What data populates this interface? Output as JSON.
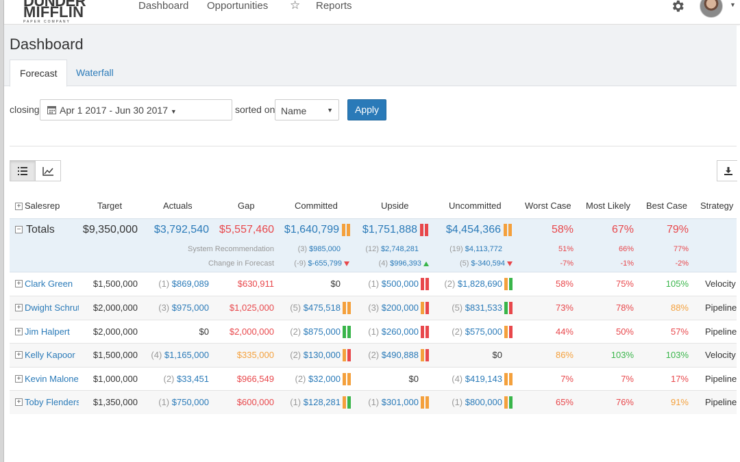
{
  "nav": {
    "logo_line1": "DUNDER",
    "logo_line2": "MIFFLIN",
    "logo_sub": "PAPER COMPANY",
    "links": [
      "Dashboard",
      "Opportunities",
      "Reports"
    ],
    "star_icon": "star-icon",
    "settings_icon": "gear-icon",
    "user_menu_icon": "chevron-down-icon"
  },
  "page": {
    "title": "Dashboard",
    "tabs": [
      "Forecast",
      "Waterfall"
    ],
    "active_tab": "Forecast"
  },
  "filters": {
    "closing_label": "closing",
    "date_range": "Apr 1 2017 - Jun 30 2017",
    "sorted_label": "sorted on",
    "sort_value": "Name",
    "apply_label": "Apply"
  },
  "view_icons": [
    "list-icon",
    "line-chart-icon"
  ],
  "download_icon": "download-icon",
  "colors": {
    "accent": "#2a7ab8",
    "negative": "#e8474b",
    "warning": "#f4a03c",
    "positive": "#39b54a",
    "totals_bg": "#e8f1f8"
  },
  "table": {
    "headers": {
      "salesrep": "Salesrep",
      "target": "Target",
      "actuals": "Actuals",
      "gap": "Gap",
      "committed": "Committed",
      "upside": "Upside",
      "uncommitted": "Uncommitted",
      "worst": "Worst Case",
      "likely": "Most Likely",
      "best": "Best Case",
      "strategy": "Strategy"
    },
    "totals": {
      "label": "Totals",
      "target": "$9,350,000",
      "actuals": "$3,792,540",
      "gap": "$5,557,460",
      "committed": "$1,640,799",
      "upside": "$1,751,888",
      "uncommitted": "$4,454,366",
      "worst": "58%",
      "likely": "67%",
      "best": "79%",
      "sys_label": "System Recommendation",
      "sys_committed_count": "(3)",
      "sys_committed": "$985,000",
      "sys_upside_count": "(12)",
      "sys_upside": "$2,748,281",
      "sys_uncommitted_count": "(19)",
      "sys_uncommitted": "$4,113,772",
      "sys_worst": "51%",
      "sys_likely": "66%",
      "sys_best": "77%",
      "chg_label": "Change in Forecast",
      "chg_committed_count": "(-9)",
      "chg_committed": "$-655,799",
      "chg_upside_count": "(4)",
      "chg_upside": "$996,393",
      "chg_uncommitted_count": "(5)",
      "chg_uncommitted": "$-340,594",
      "chg_worst": "-7%",
      "chg_likely": "-1%",
      "chg_best": "-2%"
    },
    "rows": [
      {
        "name": "Clark Green",
        "target": "$1,500,000",
        "act_count": "(1)",
        "actuals": "$869,089",
        "gap": "$630,911",
        "com_count": "",
        "committed": "$0",
        "up_count": "(1)",
        "upside": "$500,000",
        "unc_count": "(2)",
        "uncommitted": "$1,828,690",
        "worst": "58%",
        "likely": "75%",
        "best": "105%",
        "strategy": "Velocity"
      },
      {
        "name": "Dwight Schrute",
        "target": "$2,000,000",
        "act_count": "(3)",
        "actuals": "$975,000",
        "gap": "$1,025,000",
        "com_count": "(5)",
        "committed": "$475,518",
        "up_count": "(3)",
        "upside": "$200,000",
        "unc_count": "(5)",
        "uncommitted": "$831,533",
        "worst": "73%",
        "likely": "78%",
        "best": "88%",
        "strategy": "Pipeline"
      },
      {
        "name": "Jim Halpert",
        "target": "$2,000,000",
        "act_count": "",
        "actuals": "$0",
        "gap": "$2,000,000",
        "com_count": "(2)",
        "committed": "$875,000",
        "up_count": "(1)",
        "upside": "$260,000",
        "unc_count": "(2)",
        "uncommitted": "$575,000",
        "worst": "44%",
        "likely": "50%",
        "best": "57%",
        "strategy": "Pipeline"
      },
      {
        "name": "Kelly Kapoor",
        "target": "$1,500,000",
        "act_count": "(4)",
        "actuals": "$1,165,000",
        "gap": "$335,000",
        "com_count": "(2)",
        "committed": "$130,000",
        "up_count": "(2)",
        "upside": "$490,888",
        "unc_count": "",
        "uncommitted": "$0",
        "worst": "86%",
        "likely": "103%",
        "best": "103%",
        "strategy": "Velocity"
      },
      {
        "name": "Kevin Malone",
        "target": "$1,000,000",
        "act_count": "(2)",
        "actuals": "$33,451",
        "gap": "$966,549",
        "com_count": "(2)",
        "committed": "$32,000",
        "up_count": "",
        "upside": "$0",
        "unc_count": "(4)",
        "uncommitted": "$419,143",
        "worst": "7%",
        "likely": "7%",
        "best": "17%",
        "strategy": "Pipeline"
      },
      {
        "name": "Toby Flenderson",
        "target": "$1,350,000",
        "act_count": "(1)",
        "actuals": "$750,000",
        "gap": "$600,000",
        "com_count": "(1)",
        "committed": "$128,281",
        "up_count": "(1)",
        "upside": "$301,000",
        "unc_count": "(1)",
        "uncommitted": "$800,000",
        "worst": "65%",
        "likely": "76%",
        "best": "91%",
        "strategy": "Pipeline"
      }
    ]
  }
}
